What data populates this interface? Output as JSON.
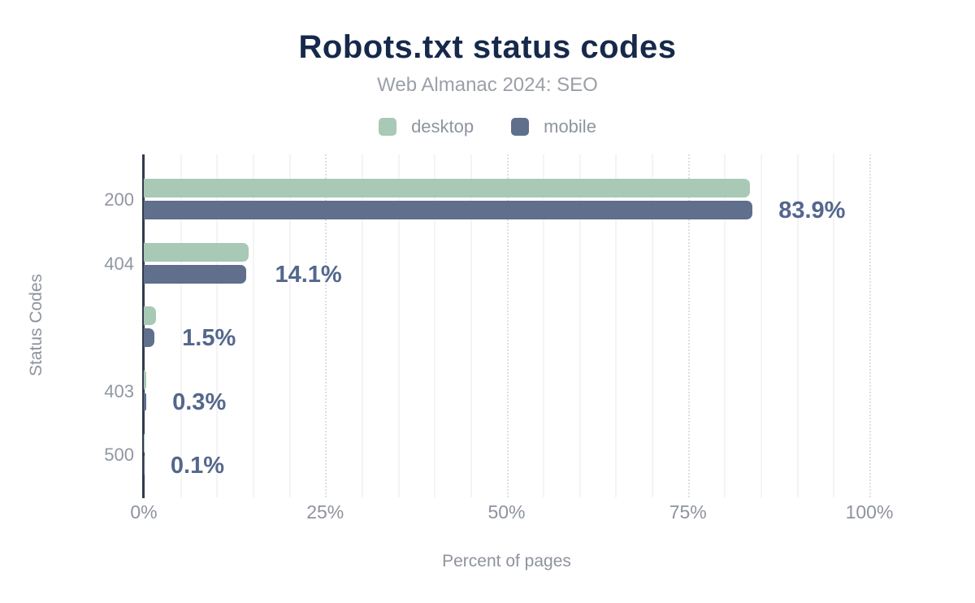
{
  "page": {
    "background": "#ffffff"
  },
  "chart_data": {
    "type": "bar",
    "orientation": "horizontal",
    "title": "Robots.txt status codes",
    "subtitle": "Web Almanac 2024: SEO",
    "xlabel": "Percent of pages",
    "ylabel": "Status Codes",
    "categories": [
      "200",
      "404",
      "",
      "403",
      "500"
    ],
    "series": [
      {
        "name": "desktop",
        "color": "#a8c9b5",
        "values": [
          83.5,
          14.5,
          1.7,
          0.35,
          0.1
        ]
      },
      {
        "name": "mobile",
        "color": "#5f6f8c",
        "values": [
          83.9,
          14.1,
          1.5,
          0.3,
          0.1
        ]
      }
    ],
    "value_labels": [
      "83.9%",
      "14.1%",
      "1.5%",
      "0.3%",
      "0.1%"
    ],
    "value_labels_series": "mobile",
    "xlim": [
      0,
      100
    ],
    "x_tick_labels": [
      "0%",
      "25%",
      "50%",
      "75%",
      "100%"
    ],
    "x_tick_values": [
      0,
      25,
      50,
      75,
      100
    ],
    "grid": {
      "minor_step": 5,
      "major_step": 25,
      "minor_style": "solid",
      "major_style": "dotted"
    },
    "legend_position": "top"
  },
  "colors": {
    "title": "#16294b",
    "subtitle": "#9ba0a8",
    "legend_label": "#8e949e",
    "axis_line": "#343b4d",
    "category_label": "#9196a0",
    "tick_label": "#8e939d",
    "axis_title": "#8e939d",
    "value_label": "#54678c",
    "grid_minor": "#f4f4f6",
    "grid_major": "#dcdfe5"
  }
}
